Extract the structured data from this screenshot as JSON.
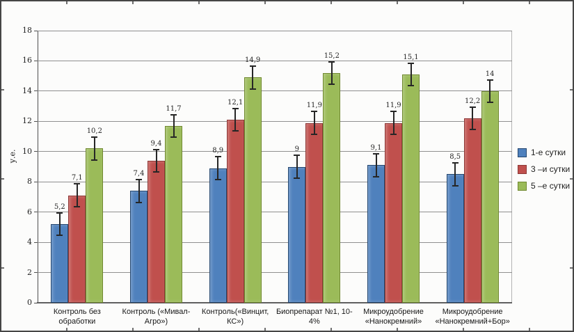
{
  "chart_data": {
    "type": "bar",
    "title": "",
    "ylabel": "у.е.",
    "ylim": [
      0,
      18
    ],
    "ytick_step": 2,
    "grid": true,
    "legend_position": "right",
    "error_bar_approx": 0.75,
    "categories": [
      "Контроль без обработки",
      "Контроль («Мивал-Агро»)",
      "Контроль(«Винцит, КС»)",
      "Биопрепарат №1, 10-4%",
      "Микроудобрение «Нанокремний»",
      "Микроудобрение «Нанокремний+Бор»"
    ],
    "series": [
      {
        "name": "1-е сутки",
        "color": "#4f81bd",
        "border": "#24466e",
        "values": [
          5.2,
          7.4,
          8.9,
          9.0,
          9.1,
          8.5
        ],
        "labels": [
          "5,2",
          "7,4",
          "8,9",
          "9",
          "9,1",
          "8,5"
        ]
      },
      {
        "name": "3 –и сутки",
        "color": "#c0504d",
        "border": "#8c3836",
        "values": [
          7.1,
          9.4,
          12.1,
          11.9,
          11.9,
          12.2
        ],
        "labels": [
          "7,1",
          "9,4",
          "12,1",
          "11,9",
          "11,9",
          "12,2"
        ]
      },
      {
        "name": "5 –е сутки",
        "color": "#9bbb59",
        "border": "#70892f",
        "values": [
          10.2,
          11.7,
          14.9,
          15.2,
          15.1,
          14.0
        ],
        "labels": [
          "10,2",
          "11,7",
          "14,9",
          "15,2",
          "15,1",
          "14"
        ]
      }
    ]
  }
}
